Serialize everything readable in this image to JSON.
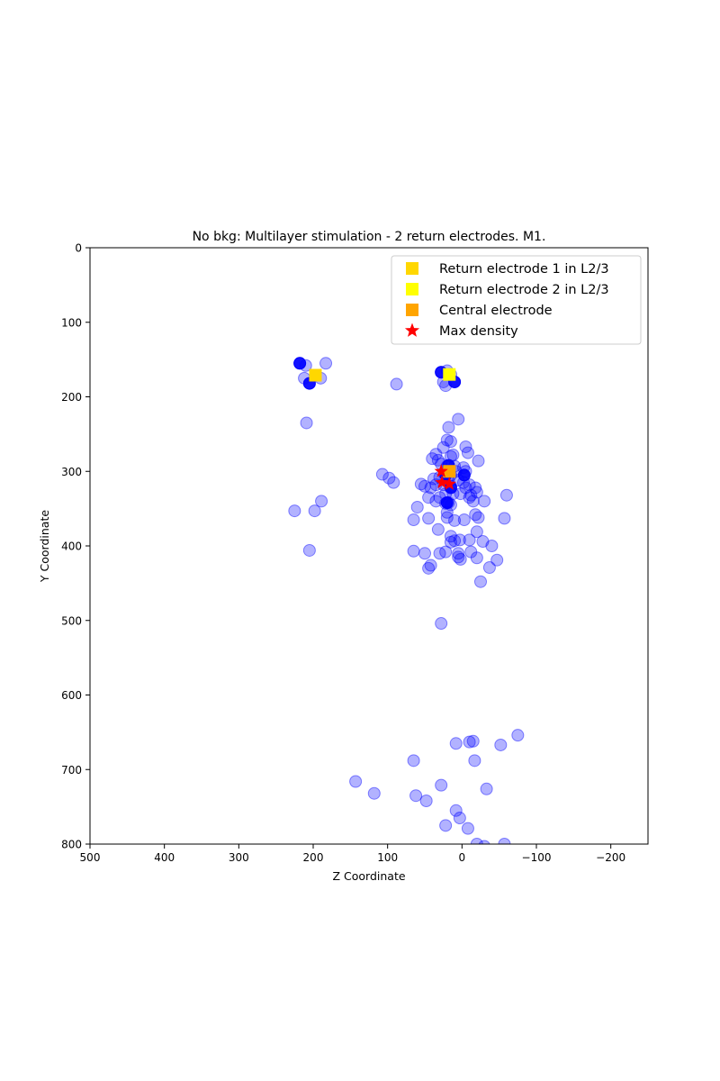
{
  "chart_data": {
    "type": "scatter",
    "title": "No bkg: Multilayer stimulation - 2 return electrodes. M1.",
    "xlabel": "Z Coordinate",
    "ylabel": "Y Coordinate",
    "xlim": [
      500,
      -250
    ],
    "ylim": [
      800,
      0
    ],
    "x_inverted": true,
    "y_inverted": true,
    "grid": false,
    "legend_position": "top-right",
    "xticks": [
      500,
      400,
      300,
      200,
      100,
      0,
      -100,
      -200
    ],
    "xtick_labels": [
      "500",
      "400",
      "300",
      "200",
      "100",
      "0",
      "−100",
      "−200"
    ],
    "yticks": [
      0,
      100,
      200,
      300,
      400,
      500,
      600,
      700,
      800
    ],
    "ytick_labels": [
      "0",
      "100",
      "200",
      "300",
      "400",
      "500",
      "600",
      "700",
      "800"
    ],
    "series": [
      {
        "type": "points",
        "color": "#0000ff",
        "alpha": 0.3,
        "points": [
          [
            218,
            155
          ],
          [
            210,
            158
          ],
          [
            212,
            175
          ],
          [
            205,
            182
          ],
          [
            183,
            155
          ],
          [
            190,
            175
          ],
          [
            28,
            167
          ],
          [
            20,
            165
          ],
          [
            15,
            170
          ],
          [
            25,
            180
          ],
          [
            10,
            180
          ],
          [
            22,
            185
          ],
          [
            88,
            183
          ],
          [
            209,
            235
          ],
          [
            225,
            353
          ],
          [
            198,
            353
          ],
          [
            189,
            340
          ],
          [
            205,
            406
          ],
          [
            107,
            304
          ],
          [
            98,
            309
          ],
          [
            92,
            315
          ],
          [
            5,
            230
          ],
          [
            18,
            241
          ],
          [
            20,
            258
          ],
          [
            15,
            260
          ],
          [
            25,
            268
          ],
          [
            -5,
            267
          ],
          [
            -8,
            275
          ],
          [
            -22,
            286
          ],
          [
            12,
            278
          ],
          [
            15,
            280
          ],
          [
            35,
            277
          ],
          [
            40,
            283
          ],
          [
            32,
            285
          ],
          [
            28,
            290
          ],
          [
            20,
            293
          ],
          [
            10,
            293
          ],
          [
            -2,
            295
          ],
          [
            -5,
            300
          ],
          [
            8,
            300
          ],
          [
            15,
            305
          ],
          [
            22,
            305
          ],
          [
            30,
            308
          ],
          [
            38,
            310
          ],
          [
            18,
            312
          ],
          [
            5,
            312
          ],
          [
            -2,
            315
          ],
          [
            -10,
            318
          ],
          [
            25,
            318
          ],
          [
            35,
            318
          ],
          [
            42,
            322
          ],
          [
            55,
            317
          ],
          [
            50,
            320
          ],
          [
            15,
            320
          ],
          [
            -5,
            322
          ],
          [
            -18,
            322
          ],
          [
            -20,
            328
          ],
          [
            -12,
            332
          ],
          [
            2,
            330
          ],
          [
            12,
            330
          ],
          [
            22,
            330
          ],
          [
            30,
            335
          ],
          [
            45,
            335
          ],
          [
            35,
            340
          ],
          [
            -10,
            335
          ],
          [
            -15,
            340
          ],
          [
            -30,
            340
          ],
          [
            18,
            342
          ],
          [
            22,
            343
          ],
          [
            15,
            345
          ],
          [
            -60,
            332
          ],
          [
            60,
            348
          ],
          [
            20,
            355
          ],
          [
            20,
            362
          ],
          [
            -3,
            365
          ],
          [
            -18,
            358
          ],
          [
            -22,
            362
          ],
          [
            -57,
            363
          ],
          [
            10,
            366
          ],
          [
            45,
            363
          ],
          [
            65,
            365
          ],
          [
            32,
            378
          ],
          [
            -20,
            381
          ],
          [
            15,
            387
          ],
          [
            10,
            393
          ],
          [
            3,
            392
          ],
          [
            15,
            395
          ],
          [
            -10,
            392
          ],
          [
            -28,
            394
          ],
          [
            -40,
            400
          ],
          [
            -12,
            408
          ],
          [
            22,
            408
          ],
          [
            30,
            410
          ],
          [
            5,
            410
          ],
          [
            50,
            410
          ],
          [
            65,
            407
          ],
          [
            -47,
            419
          ],
          [
            -20,
            416
          ],
          [
            -37,
            429
          ],
          [
            -25,
            448
          ],
          [
            5,
            415
          ],
          [
            2,
            418
          ],
          [
            42,
            426
          ],
          [
            45,
            430
          ],
          [
            28,
            504
          ],
          [
            -75,
            654
          ],
          [
            -52,
            667
          ],
          [
            -15,
            662
          ],
          [
            -10,
            663
          ],
          [
            -17,
            688
          ],
          [
            8,
            665
          ],
          [
            65,
            688
          ],
          [
            143,
            716
          ],
          [
            118,
            732
          ],
          [
            28,
            721
          ],
          [
            62,
            735
          ],
          [
            48,
            742
          ],
          [
            -33,
            726
          ],
          [
            8,
            755
          ],
          [
            3,
            765
          ],
          [
            -8,
            779
          ],
          [
            22,
            775
          ],
          [
            -20,
            800
          ],
          [
            -30,
            803
          ],
          [
            -57,
            800
          ]
        ]
      },
      {
        "type": "points",
        "color": "#0000ff",
        "alpha": 0.9,
        "points": [
          [
            218,
            155
          ],
          [
            205,
            182
          ],
          [
            28,
            167
          ],
          [
            10,
            180
          ],
          [
            18,
            292
          ],
          [
            22,
            305
          ],
          [
            -3,
            305
          ],
          [
            15,
            322
          ],
          [
            20,
            342
          ]
        ]
      },
      {
        "type": "marker",
        "name": "Return electrode 1 in L2/3",
        "marker": "square",
        "color": "#ffd700",
        "points": [
          [
            197,
            171
          ]
        ]
      },
      {
        "type": "marker",
        "name": "Return electrode 2 in L2/3",
        "marker": "square",
        "color": "#ffff00",
        "points": [
          [
            17,
            170
          ]
        ]
      },
      {
        "type": "marker",
        "name": "Central electrode",
        "marker": "square",
        "color": "#ffa500",
        "points": [
          [
            17,
            300
          ]
        ]
      },
      {
        "type": "marker",
        "name": "Max density",
        "marker": "star",
        "color": "#ff0000",
        "points": [
          [
            28,
            300
          ],
          [
            27,
            315
          ],
          [
            17,
            317
          ]
        ]
      }
    ],
    "legend": [
      {
        "label": "Return electrode 1 in L2/3",
        "marker": "square",
        "color": "#ffd700"
      },
      {
        "label": "Return electrode 2 in L2/3",
        "marker": "square",
        "color": "#ffff00"
      },
      {
        "label": "Central electrode",
        "marker": "square",
        "color": "#ffa500"
      },
      {
        "label": "Max density",
        "marker": "star",
        "color": "#ff0000"
      }
    ]
  }
}
